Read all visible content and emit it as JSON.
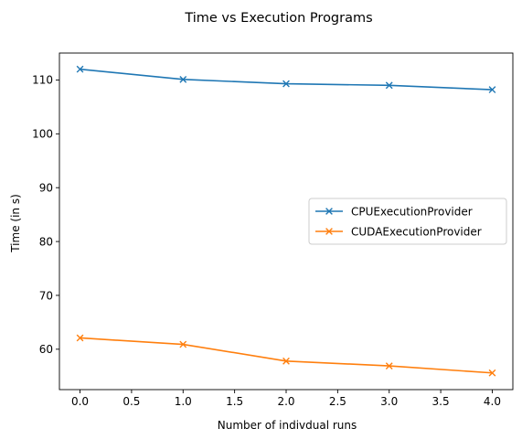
{
  "chart_data": {
    "type": "line",
    "title": "Time vs Execution Programs",
    "xlabel": "Number of indivdual runs",
    "ylabel": "Time (in s)",
    "xlim": [
      -0.2,
      4.2
    ],
    "ylim": [
      52.5,
      115
    ],
    "xticks": [
      0.0,
      0.5,
      1.0,
      1.5,
      2.0,
      2.5,
      3.0,
      3.5,
      4.0
    ],
    "xtick_labels": [
      "0.0",
      "0.5",
      "1.0",
      "1.5",
      "2.0",
      "2.5",
      "3.0",
      "3.5",
      "4.0"
    ],
    "yticks": [
      60,
      70,
      80,
      90,
      100,
      110
    ],
    "ytick_labels": [
      "60",
      "70",
      "80",
      "90",
      "100",
      "110"
    ],
    "grid": false,
    "legend_position": "center-right",
    "marker": "x",
    "x": [
      0,
      1,
      2,
      3,
      4
    ],
    "series": [
      {
        "name": "CPUExecutionProvider",
        "color": "#1f77b4",
        "values": [
          112.0,
          110.1,
          109.3,
          109.0,
          108.2
        ]
      },
      {
        "name": "CUDAExecutionProvider",
        "color": "#ff7f0e",
        "values": [
          62.1,
          60.9,
          57.8,
          56.9,
          55.6
        ]
      }
    ]
  }
}
